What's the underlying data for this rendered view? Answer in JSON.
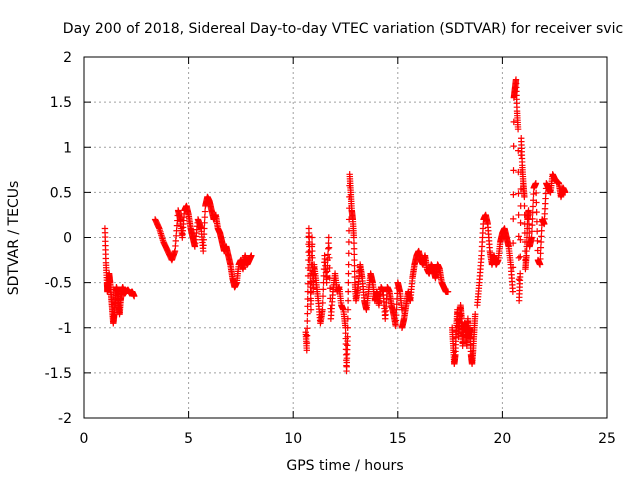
{
  "chart_data": {
    "type": "scatter",
    "title": "Day 200 of 2018, Sidereal Day-to-day VTEC variation (SDTVAR) for receiver svic",
    "xlabel": "GPS time / hours",
    "ylabel": "SDTVAR / TECUs",
    "xlim": [
      0,
      25
    ],
    "ylim": [
      -2,
      2
    ],
    "x_ticks": [
      0,
      5,
      10,
      15,
      20,
      25
    ],
    "y_ticks": [
      -2,
      -1.5,
      -1,
      -0.5,
      0,
      0.5,
      1,
      1.5,
      2
    ],
    "x_tick_labels": [
      "0",
      "5",
      "10",
      "15",
      "20",
      "25"
    ],
    "y_tick_labels": [
      "-2",
      "-1.5",
      "-1",
      "-0.5",
      "0",
      "0.5",
      "1",
      "1.5",
      "2"
    ],
    "grid": true,
    "marker": "+",
    "colors": {
      "series": "#ff0000",
      "grid": "#a0a0a0",
      "axes": "#000000"
    },
    "series": [
      {
        "name": "SDTVAR",
        "segments": [
          {
            "x": [
              1.0,
              1.05,
              1.1,
              1.12,
              1.15,
              1.2,
              1.25,
              1.3,
              1.35,
              1.4,
              1.45,
              1.5,
              1.55,
              1.6,
              1.65,
              1.7,
              1.75,
              1.8,
              1.85,
              1.9,
              1.95,
              2.0,
              2.1,
              2.2,
              2.3,
              2.4
            ],
            "y": [
              0.1,
              -0.28,
              -0.5,
              -0.6,
              -0.55,
              -0.4,
              -0.5,
              -0.65,
              -0.8,
              -0.95,
              -0.85,
              -0.7,
              -0.55,
              -0.6,
              -0.75,
              -0.85,
              -0.7,
              -0.6,
              -0.55,
              -0.6,
              -0.62,
              -0.6,
              -0.58,
              -0.62,
              -0.6,
              -0.65
            ]
          },
          {
            "x": [
              3.4,
              3.6,
              3.8,
              4.0,
              4.2,
              4.35,
              4.5,
              4.6,
              4.7,
              4.8,
              4.9,
              5.0,
              5.1,
              5.2,
              5.3,
              5.45,
              5.6,
              5.7,
              5.8,
              5.9,
              6.0,
              6.1,
              6.2,
              6.3,
              6.4,
              6.5,
              6.6,
              6.7,
              6.8,
              6.9,
              7.0,
              7.1,
              7.2,
              7.3,
              7.4,
              7.5,
              7.6,
              7.7,
              7.8,
              7.9,
              8.0
            ],
            "y": [
              0.2,
              0.1,
              -0.05,
              -0.15,
              -0.25,
              -0.15,
              0.3,
              0.2,
              0.0,
              0.3,
              0.35,
              0.25,
              0.1,
              0.0,
              -0.1,
              0.2,
              0.1,
              -0.15,
              0.35,
              0.45,
              0.4,
              0.3,
              0.2,
              0.25,
              0.1,
              0.05,
              -0.05,
              -0.15,
              -0.1,
              -0.2,
              -0.3,
              -0.45,
              -0.55,
              -0.5,
              -0.3,
              -0.25,
              -0.35,
              -0.2,
              -0.3,
              -0.25,
              -0.2
            ]
          },
          {
            "x": [
              10.6,
              10.65,
              10.7,
              10.75,
              10.8,
              10.85,
              10.9,
              10.95,
              11.0,
              11.1,
              11.2,
              11.3,
              11.4,
              11.5,
              11.6,
              11.7,
              11.8,
              11.9,
              12.0,
              12.1,
              12.2,
              12.3,
              12.4,
              12.5,
              12.55,
              12.6,
              12.65,
              12.7,
              12.75,
              12.8,
              12.85,
              12.9,
              12.95,
              13.0,
              13.1,
              13.2,
              13.3,
              13.4,
              13.5,
              13.6,
              13.7,
              13.8,
              13.9,
              14.0,
              14.1,
              14.2,
              14.3,
              14.4,
              14.5,
              14.6,
              14.7,
              14.8,
              14.9,
              15.0,
              15.1,
              15.2
            ],
            "y": [
              -1.05,
              -1.25,
              -0.6,
              0.1,
              -0.3,
              -0.8,
              0.0,
              -0.6,
              -0.3,
              -0.5,
              -0.7,
              -0.95,
              -0.8,
              -0.2,
              -0.5,
              0.0,
              -0.9,
              -0.6,
              -0.4,
              -0.6,
              -0.55,
              -0.75,
              -0.8,
              -1.0,
              -1.48,
              -1.1,
              -0.3,
              0.7,
              0.5,
              0.3,
              0.2,
              0.0,
              -0.5,
              -0.7,
              -0.55,
              -0.3,
              -0.45,
              -0.7,
              -0.8,
              -0.6,
              -0.4,
              -0.5,
              -0.7,
              -0.6,
              -0.75,
              -0.55,
              -0.6,
              -0.9,
              -0.55,
              -0.6,
              -0.75,
              -0.85,
              -0.98,
              -0.5,
              -0.6,
              -0.8
            ]
          },
          {
            "x": [
              15.2,
              15.3,
              15.4,
              15.5,
              15.6,
              15.7,
              15.8,
              15.9,
              16.0,
              16.1,
              16.2,
              16.3,
              16.4,
              16.5,
              16.6,
              16.7,
              16.8,
              16.9,
              17.0,
              17.1,
              17.2,
              17.3,
              17.4
            ],
            "y": [
              -1.0,
              -0.9,
              -0.75,
              -0.6,
              -0.7,
              -0.45,
              -0.3,
              -0.2,
              -0.15,
              -0.25,
              -0.3,
              -0.2,
              -0.35,
              -0.4,
              -0.3,
              -0.35,
              -0.45,
              -0.3,
              -0.35,
              -0.5,
              -0.55,
              -0.6,
              -0.6
            ]
          },
          {
            "x": [
              17.6,
              17.65,
              17.7,
              17.75,
              17.8,
              17.85,
              17.9,
              17.95,
              18.0,
              18.05,
              18.1,
              18.15,
              18.2,
              18.25,
              18.3,
              18.35,
              18.4,
              18.45,
              18.5,
              18.55,
              18.6,
              18.65,
              18.7
            ],
            "y": [
              -1.0,
              -1.2,
              -1.4,
              -1.3,
              -1.0,
              -0.8,
              -1.1,
              -0.95,
              -0.75,
              -0.9,
              -1.2,
              -1.0,
              -0.95,
              -1.05,
              -1.2,
              -0.9,
              -1.1,
              -1.0,
              -1.3,
              -1.4,
              -1.25,
              -1.05,
              -0.85
            ]
          },
          {
            "x": [
              18.8,
              18.9,
              19.0,
              19.1,
              19.2,
              19.3,
              19.4,
              19.5,
              19.6,
              19.7,
              19.8,
              19.9,
              20.0,
              20.1,
              20.2,
              20.3,
              20.4,
              20.5,
              20.55,
              20.6,
              20.65,
              20.7,
              20.75,
              20.8,
              20.85,
              20.9,
              20.95,
              21.0,
              21.05,
              21.1,
              21.15,
              21.2,
              21.25,
              21.3,
              21.4,
              21.5,
              21.6,
              21.7,
              21.8,
              21.9,
              22.0,
              22.1,
              22.2,
              22.3,
              22.4,
              22.5,
              22.6,
              22.7,
              22.8,
              22.9,
              23.0
            ],
            "y": [
              -0.75,
              -0.5,
              -0.2,
              0.2,
              0.25,
              0.15,
              -0.15,
              -0.3,
              -0.2,
              -0.3,
              -0.25,
              -0.05,
              0.05,
              0.1,
              0.0,
              -0.1,
              -0.3,
              -0.6,
              1.55,
              1.65,
              1.75,
              1.4,
              1.2,
              -0.7,
              -0.4,
              1.1,
              0.8,
              0.6,
              0.45,
              -0.35,
              -0.2,
              0.2,
              0.3,
              -0.1,
              0.0,
              0.55,
              0.6,
              -0.25,
              -0.3,
              0.2,
              0.15,
              0.6,
              0.55,
              0.5,
              0.7,
              0.65,
              0.62,
              0.6,
              0.45,
              0.55,
              0.5
            ]
          }
        ]
      }
    ]
  }
}
